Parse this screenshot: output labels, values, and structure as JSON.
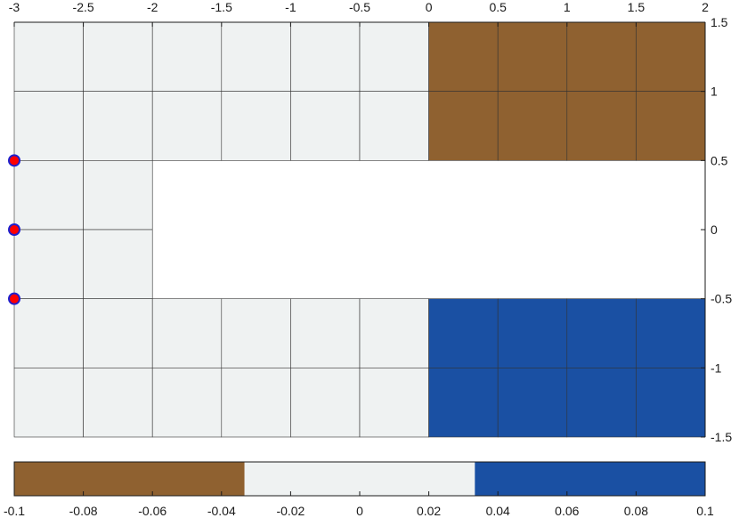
{
  "chart_data": {
    "type": "heatmap",
    "title": "",
    "xlabel": "",
    "ylabel": "",
    "xlim": [
      -3,
      2
    ],
    "ylim": [
      -1.5,
      1.5
    ],
    "x_ticks": [
      -3,
      -2.5,
      -2,
      -1.5,
      -1,
      -0.5,
      0,
      0.5,
      1,
      1.5,
      2
    ],
    "x_tick_labels": [
      "-3",
      "-2.5",
      "-2",
      "-1.5",
      "-1",
      "-0.5",
      "0",
      "0.5",
      "1",
      "1.5",
      "2"
    ],
    "y_ticks": [
      1.5,
      1,
      0.5,
      0,
      -0.5,
      -1,
      -1.5
    ],
    "y_tick_labels": [
      "1.5",
      "1",
      "0.5",
      "0",
      "-0.5",
      "-1",
      "-1.5"
    ],
    "x_axis_location": "top",
    "y_axis_location": "right",
    "grid": false,
    "cells": [
      {
        "x": [
          -3,
          -2.5
        ],
        "y": [
          1,
          1.5
        ],
        "value": 0
      },
      {
        "x": [
          -2.5,
          -2
        ],
        "y": [
          1,
          1.5
        ],
        "value": 0
      },
      {
        "x": [
          -2,
          -1.5
        ],
        "y": [
          1,
          1.5
        ],
        "value": 0
      },
      {
        "x": [
          -1.5,
          -1
        ],
        "y": [
          1,
          1.5
        ],
        "value": 0
      },
      {
        "x": [
          -1,
          -0.5
        ],
        "y": [
          1,
          1.5
        ],
        "value": 0
      },
      {
        "x": [
          -0.5,
          0
        ],
        "y": [
          1,
          1.5
        ],
        "value": 0
      },
      {
        "x": [
          0,
          0.5
        ],
        "y": [
          1,
          1.5
        ],
        "value": -0.1
      },
      {
        "x": [
          0.5,
          1
        ],
        "y": [
          1,
          1.5
        ],
        "value": -0.1
      },
      {
        "x": [
          1,
          1.5
        ],
        "y": [
          1,
          1.5
        ],
        "value": -0.1
      },
      {
        "x": [
          1.5,
          2
        ],
        "y": [
          1,
          1.5
        ],
        "value": -0.1
      },
      {
        "x": [
          -3,
          -2.5
        ],
        "y": [
          0.5,
          1
        ],
        "value": 0
      },
      {
        "x": [
          -2.5,
          -2
        ],
        "y": [
          0.5,
          1
        ],
        "value": 0
      },
      {
        "x": [
          -2,
          -1.5
        ],
        "y": [
          0.5,
          1
        ],
        "value": 0
      },
      {
        "x": [
          -1.5,
          -1
        ],
        "y": [
          0.5,
          1
        ],
        "value": 0
      },
      {
        "x": [
          -1,
          -0.5
        ],
        "y": [
          0.5,
          1
        ],
        "value": 0
      },
      {
        "x": [
          -0.5,
          0
        ],
        "y": [
          0.5,
          1
        ],
        "value": 0
      },
      {
        "x": [
          0,
          0.5
        ],
        "y": [
          0.5,
          1
        ],
        "value": -0.1
      },
      {
        "x": [
          0.5,
          1
        ],
        "y": [
          0.5,
          1
        ],
        "value": -0.1
      },
      {
        "x": [
          1,
          1.5
        ],
        "y": [
          0.5,
          1
        ],
        "value": -0.1
      },
      {
        "x": [
          1.5,
          2
        ],
        "y": [
          0.5,
          1
        ],
        "value": -0.1
      },
      {
        "x": [
          -3,
          -2.5
        ],
        "y": [
          0,
          0.5
        ],
        "value": 0
      },
      {
        "x": [
          -2.5,
          -2
        ],
        "y": [
          0,
          0.5
        ],
        "value": 0
      },
      {
        "x": [
          -3,
          -2.5
        ],
        "y": [
          -0.5,
          0
        ],
        "value": 0
      },
      {
        "x": [
          -2.5,
          -2
        ],
        "y": [
          -0.5,
          0
        ],
        "value": 0
      },
      {
        "x": [
          -3,
          -2.5
        ],
        "y": [
          -1,
          -0.5
        ],
        "value": 0
      },
      {
        "x": [
          -2.5,
          -2
        ],
        "y": [
          -1,
          -0.5
        ],
        "value": 0
      },
      {
        "x": [
          -2,
          -1.5
        ],
        "y": [
          -1,
          -0.5
        ],
        "value": 0
      },
      {
        "x": [
          -1.5,
          -1
        ],
        "y": [
          -1,
          -0.5
        ],
        "value": 0
      },
      {
        "x": [
          -1,
          -0.5
        ],
        "y": [
          -1,
          -0.5
        ],
        "value": 0
      },
      {
        "x": [
          -0.5,
          0
        ],
        "y": [
          -1,
          -0.5
        ],
        "value": 0
      },
      {
        "x": [
          0,
          0.5
        ],
        "y": [
          -1,
          -0.5
        ],
        "value": 0.1
      },
      {
        "x": [
          0.5,
          1
        ],
        "y": [
          -1,
          -0.5
        ],
        "value": 0.1
      },
      {
        "x": [
          1,
          1.5
        ],
        "y": [
          -1,
          -0.5
        ],
        "value": 0.1
      },
      {
        "x": [
          1.5,
          2
        ],
        "y": [
          -1,
          -0.5
        ],
        "value": 0.1
      },
      {
        "x": [
          -3,
          -2.5
        ],
        "y": [
          -1.5,
          -1
        ],
        "value": 0
      },
      {
        "x": [
          -2.5,
          -2
        ],
        "y": [
          -1.5,
          -1
        ],
        "value": 0
      },
      {
        "x": [
          -2,
          -1.5
        ],
        "y": [
          -1.5,
          -1
        ],
        "value": 0
      },
      {
        "x": [
          -1.5,
          -1
        ],
        "y": [
          -1.5,
          -1
        ],
        "value": 0
      },
      {
        "x": [
          -1,
          -0.5
        ],
        "y": [
          -1.5,
          -1
        ],
        "value": 0
      },
      {
        "x": [
          -0.5,
          0
        ],
        "y": [
          -1.5,
          -1
        ],
        "value": 0
      },
      {
        "x": [
          0,
          0.5
        ],
        "y": [
          -1.5,
          -1
        ],
        "value": 0.1
      },
      {
        "x": [
          0.5,
          1
        ],
        "y": [
          -1.5,
          -1
        ],
        "value": 0.1
      },
      {
        "x": [
          1,
          1.5
        ],
        "y": [
          -1.5,
          -1
        ],
        "value": 0.1
      },
      {
        "x": [
          1.5,
          2
        ],
        "y": [
          -1.5,
          -1
        ],
        "value": 0.1
      }
    ],
    "points": [
      {
        "x": -3,
        "y": 0.5
      },
      {
        "x": -3,
        "y": 0
      },
      {
        "x": -3,
        "y": -0.5
      }
    ],
    "colorbar": {
      "location": "bottom",
      "limits": [
        -0.1,
        0.1
      ],
      "ticks": [
        -0.1,
        -0.08,
        -0.06,
        -0.04,
        -0.02,
        0,
        0.02,
        0.04,
        0.06,
        0.08,
        0.1
      ],
      "tick_labels": [
        "-0.1",
        "-0.08",
        "-0.06",
        "-0.04",
        "-0.02",
        "0",
        "0.02",
        "0.04",
        "0.06",
        "0.08",
        "0.1"
      ],
      "colormap": [
        "#8f6130",
        "#eff2f2",
        "#1a50a3"
      ]
    },
    "colors": {
      "negative": "#8f6130",
      "neutral": "#eff2f2",
      "positive": "#1a50a3",
      "point_fill": "#ff0000",
      "point_edge": "#1f1fcc",
      "cell_edge": "#333333",
      "axis": "#1a1a1a"
    }
  }
}
